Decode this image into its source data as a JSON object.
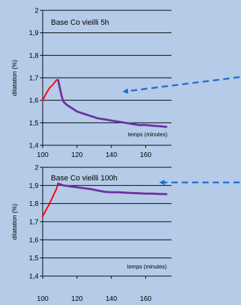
{
  "background_color": "#b5cbe8",
  "chart_data": [
    {
      "type": "line",
      "title": "Base Co vieilli 5h",
      "xlabel": "temps (minutes)",
      "ylabel": "dilatation (%)",
      "xlim": [
        100,
        175
      ],
      "ylim": [
        1.4,
        2.0
      ],
      "xticks": [
        "100",
        "120",
        "140",
        "160"
      ],
      "yticks": [
        "1,4",
        "1,5",
        "1,6",
        "1,7",
        "1,8",
        "1,9",
        "2"
      ],
      "grid": "horizontal",
      "series": [
        {
          "color": "#ff0000",
          "x": [
            100,
            102,
            104,
            106,
            107,
            108,
            109
          ],
          "y": [
            1.6,
            1.63,
            1.655,
            1.67,
            1.68,
            1.69,
            1.69
          ]
        },
        {
          "color": "#7030a0",
          "x": [
            109,
            110,
            111,
            112,
            114,
            116,
            118,
            120,
            124,
            128,
            132,
            136,
            140,
            144,
            148,
            152,
            156,
            160,
            164,
            168,
            172
          ],
          "y": [
            1.69,
            1.655,
            1.62,
            1.595,
            1.58,
            1.57,
            1.56,
            1.55,
            1.54,
            1.53,
            1.52,
            1.515,
            1.51,
            1.505,
            1.5,
            1.495,
            1.49,
            1.49,
            1.487,
            1.485,
            1.482
          ]
        }
      ]
    },
    {
      "type": "line",
      "title": "Base Co vieilli 100h",
      "xlabel": "temps (minutes)",
      "ylabel": "dilatation (%)",
      "xlim": [
        100,
        175
      ],
      "ylim": [
        1.4,
        2.0
      ],
      "xticks": [
        "100",
        "120",
        "140",
        "160"
      ],
      "yticks": [
        "1,4",
        "1,5",
        "1,6",
        "1,7",
        "1,8",
        "1,9",
        "2"
      ],
      "grid": "horizontal",
      "series": [
        {
          "color": "#ff0000",
          "x": [
            100,
            102,
            104,
            106,
            108,
            109
          ],
          "y": [
            1.73,
            1.765,
            1.8,
            1.84,
            1.88,
            1.91
          ]
        },
        {
          "color": "#7030a0",
          "x": [
            109,
            112,
            116,
            120,
            124,
            128,
            132,
            136,
            140,
            144,
            148,
            152,
            156,
            160,
            164,
            168,
            172
          ],
          "y": [
            1.91,
            1.9,
            1.895,
            1.89,
            1.885,
            1.88,
            1.872,
            1.865,
            1.862,
            1.862,
            1.86,
            1.858,
            1.857,
            1.855,
            1.855,
            1.853,
            1.852
          ]
        }
      ]
    }
  ],
  "arrow_color": "#1f6fd0"
}
